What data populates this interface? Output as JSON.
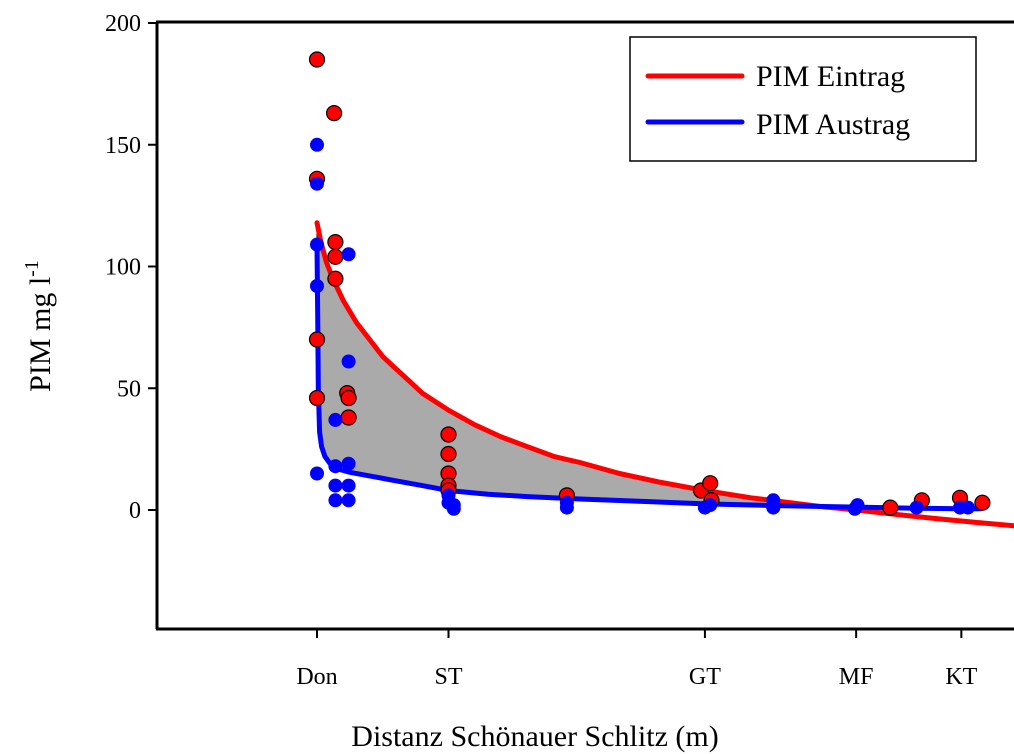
{
  "chart_data": {
    "type": "scatter",
    "title": "",
    "xlabel": "Distanz Schönauer Schlitz (m)",
    "ylabel": "PIM mg l",
    "ylabel_superscript": "-1",
    "xlim": [
      -12,
      58
    ],
    "ylim": [
      -49,
      200
    ],
    "yticks": [
      0,
      50,
      100,
      150,
      200
    ],
    "x_categories": [
      {
        "label": "Don",
        "x": 0
      },
      {
        "label": "ST",
        "x": 10
      },
      {
        "label": "GT",
        "x": 29.5
      },
      {
        "label": "MF",
        "x": 41
      },
      {
        "label": "KT",
        "x": 49
      }
    ],
    "grid": false,
    "legend_position": "top-right",
    "shaded_region": {
      "color": "#aaaaaa",
      "between": [
        "PIM Eintrag",
        "PIM Austrag"
      ]
    },
    "series": [
      {
        "name": "PIM Eintrag",
        "color": "#ff0000",
        "fit_curve": {
          "x": [
            0,
            0.3,
            0.7,
            1.2,
            2,
            3,
            4,
            5,
            6,
            7,
            8,
            10,
            12,
            14,
            16,
            18,
            20,
            23,
            26,
            29.5,
            33,
            36,
            38.5,
            41,
            44,
            47,
            50,
            53,
            55,
            57,
            58
          ],
          "y": [
            118,
            110,
            102,
            95,
            86,
            77,
            70,
            63,
            58,
            53,
            48,
            41,
            35,
            30,
            26,
            22,
            19.5,
            15,
            11.5,
            8,
            5,
            3,
            1.3,
            0,
            -1.8,
            -3.5,
            -5,
            -6.5,
            -7.8,
            -9,
            -10
          ]
        },
        "points": {
          "x": [
            0,
            0,
            0,
            0,
            1.3,
            1.4,
            1.4,
            1.4,
            2.3,
            2.4,
            2.4,
            10,
            10,
            10,
            10,
            10,
            19,
            29.2,
            29.9,
            30,
            43.6,
            46,
            48.9,
            50.6
          ],
          "y": [
            185,
            136,
            70,
            46,
            163,
            110,
            104,
            95,
            48,
            46,
            38,
            31,
            23,
            15,
            10,
            8,
            6,
            8,
            11,
            4,
            1,
            4,
            5,
            3
          ]
        }
      },
      {
        "name": "PIM Austrag",
        "color": "#0000ff",
        "fit_curve": {
          "x": [
            0,
            0.05,
            0.1,
            0.2,
            0.35,
            0.6,
            1,
            1.5,
            2.5,
            4,
            6,
            8,
            10,
            13,
            16,
            20,
            25,
            29.5,
            35,
            41,
            45,
            48.9,
            50.5
          ],
          "y": [
            108,
            80,
            50,
            32,
            26,
            22,
            19,
            17,
            15.5,
            14,
            12,
            10,
            8,
            6.5,
            5.5,
            4.5,
            3.5,
            2.5,
            1.8,
            1.2,
            0.8,
            0.5,
            0.5
          ]
        },
        "points": {
          "x": [
            0,
            0,
            0,
            0,
            0,
            1.4,
            1.4,
            1.4,
            1.4,
            2.4,
            2.4,
            2.4,
            2.4,
            2.4,
            10,
            10,
            10.4,
            10.4,
            19,
            19,
            29.5,
            29.9,
            34.7,
            34.7,
            40.9,
            41.1,
            45.6,
            48.9,
            49.5
          ],
          "y": [
            150,
            134,
            109,
            92,
            15,
            37,
            18,
            10,
            4,
            105,
            61,
            19,
            10,
            4,
            6,
            3,
            2,
            0.5,
            3,
            1,
            1,
            2,
            4,
            1,
            0.5,
            2,
            1,
            1,
            1
          ]
        }
      }
    ]
  }
}
